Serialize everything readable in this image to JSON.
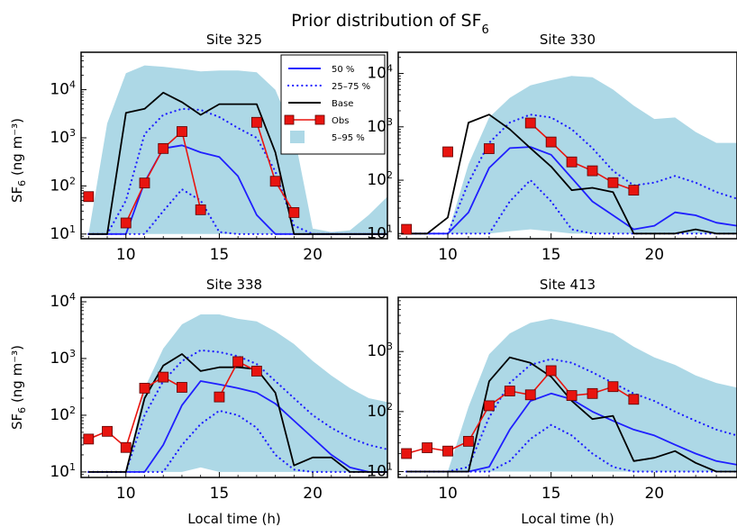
{
  "figure": {
    "title": "Prior distribution of SF",
    "title_sub": "6"
  },
  "legend": {
    "entries": [
      {
        "label": "50 %",
        "style": "solid-blue"
      },
      {
        "label": "25–75 %",
        "style": "dotted-blue"
      },
      {
        "label": "Base",
        "style": "solid-black"
      },
      {
        "label": "Obs",
        "style": "red-square"
      },
      {
        "label": "5–95 %",
        "style": "lightblue-band"
      }
    ]
  },
  "colors": {
    "median": "#1f1fff",
    "quartile": "#1f1fff",
    "base": "#000000",
    "obs_fill": "#e8140f",
    "obs_line": "#e8140f",
    "band": "#add8e6"
  },
  "chart_data": [
    {
      "type": "line",
      "title": "Site 325",
      "xlabel": "",
      "ylabel": "SF6 (ng m⁻³)",
      "y_scale": "log",
      "ylim": [
        8,
        60000
      ],
      "xlim": [
        7.6,
        24
      ],
      "xticks": [
        10,
        15,
        20
      ],
      "yticks": [
        10,
        100,
        1000,
        10000
      ],
      "legend_location": "top-right",
      "band_x": [
        8,
        9,
        10,
        11,
        12,
        13,
        14,
        15,
        16,
        17,
        18,
        19,
        20,
        21,
        22,
        23,
        24
      ],
      "band_low": [
        10,
        10,
        10,
        10,
        10,
        10,
        10,
        10,
        10,
        10,
        10,
        10,
        10,
        10,
        10,
        10,
        10
      ],
      "band_high": [
        10,
        2000,
        22000,
        32000,
        30000,
        27000,
        24000,
        25000,
        25000,
        23000,
        10000,
        1200,
        13,
        11,
        12,
        25,
        60
      ],
      "x": [
        8,
        9,
        10,
        11,
        12,
        13,
        14,
        15,
        16,
        17,
        18,
        19,
        20,
        21,
        22,
        23,
        24
      ],
      "p50": [
        10,
        10,
        10,
        120,
        600,
        700,
        500,
        400,
        160,
        25,
        10,
        10,
        10,
        10,
        10,
        10,
        10
      ],
      "p25": [
        10,
        10,
        10,
        10,
        30,
        85,
        50,
        11,
        10,
        10,
        10,
        10,
        10,
        10,
        10,
        10,
        10
      ],
      "p75": [
        10,
        10,
        50,
        1200,
        3000,
        4000,
        3800,
        2700,
        1600,
        1000,
        200,
        15,
        10,
        10,
        10,
        10,
        10
      ],
      "base": [
        10,
        10,
        3300,
        4000,
        8700,
        5500,
        3000,
        5000,
        5000,
        5000,
        500,
        10,
        10,
        10,
        10,
        10,
        10
      ],
      "obs_x": [
        8,
        10,
        11,
        12,
        13,
        14,
        17,
        18,
        19
      ],
      "obs_y": [
        60,
        17,
        115,
        600,
        1350,
        32,
        2100,
        125,
        28
      ],
      "obs_connected": [
        [
          10,
          11,
          12,
          13,
          14
        ],
        [
          17,
          18,
          19
        ]
      ]
    },
    {
      "type": "line",
      "title": "Site 330",
      "xlabel": "",
      "ylabel": "",
      "y_scale": "log",
      "ylim": [
        8,
        25000
      ],
      "xlim": [
        7.6,
        24
      ],
      "xticks": [
        10,
        15,
        20
      ],
      "yticks": [
        10,
        100,
        1000,
        10000
      ],
      "legend_location": "",
      "band_x": [
        8,
        9,
        10,
        11,
        12,
        13,
        14,
        15,
        16,
        17,
        18,
        19,
        20,
        21,
        22,
        23,
        24
      ],
      "band_low": [
        10,
        10,
        10,
        10,
        10,
        11,
        12,
        11,
        10,
        10,
        10,
        10,
        10,
        10,
        10,
        10,
        10
      ],
      "band_high": [
        10,
        10,
        10,
        200,
        1500,
        3500,
        6000,
        7500,
        9000,
        8500,
        5000,
        2500,
        1400,
        1500,
        800,
        500,
        500
      ],
      "x": [
        8,
        9,
        10,
        11,
        12,
        13,
        14,
        15,
        16,
        17,
        18,
        19,
        20,
        21,
        22,
        23,
        24
      ],
      "p50": [
        10,
        10,
        10,
        25,
        170,
        400,
        420,
        300,
        110,
        40,
        22,
        12,
        14,
        25,
        22,
        16,
        14
      ],
      "p25": [
        10,
        10,
        10,
        10,
        10,
        40,
        100,
        40,
        12,
        10,
        10,
        10,
        10,
        10,
        10,
        10,
        10
      ],
      "p75": [
        10,
        10,
        10,
        90,
        500,
        1200,
        1700,
        1500,
        900,
        400,
        150,
        80,
        90,
        120,
        90,
        60,
        45
      ],
      "base": [
        10,
        10,
        20,
        1200,
        1700,
        900,
        400,
        180,
        65,
        72,
        60,
        10,
        10,
        10,
        12,
        10,
        10
      ],
      "obs_x": [
        8,
        10,
        12,
        14,
        15,
        16,
        17,
        18,
        19
      ],
      "obs_y": [
        12,
        340,
        390,
        1180,
        520,
        220,
        150,
        90,
        65
      ],
      "obs_connected": [
        [
          14,
          15,
          16,
          17,
          18,
          19
        ]
      ]
    },
    {
      "type": "line",
      "title": "Site 338",
      "xlabel": "Local time (h)",
      "ylabel": "SF6 (ng m⁻³)",
      "y_scale": "log",
      "ylim": [
        8,
        12000
      ],
      "xlim": [
        7.6,
        24
      ],
      "xticks": [
        10,
        15,
        20
      ],
      "yticks": [
        10,
        100,
        1000,
        10000
      ],
      "legend_location": "",
      "band_x": [
        8,
        9,
        10,
        11,
        12,
        13,
        14,
        15,
        16,
        17,
        18,
        19,
        20,
        21,
        22,
        23,
        24
      ],
      "band_low": [
        10,
        10,
        10,
        10,
        10,
        10,
        12,
        10,
        10,
        10,
        10,
        10,
        10,
        10,
        10,
        10,
        10
      ],
      "band_high": [
        10,
        10,
        10,
        300,
        1500,
        4000,
        6000,
        6000,
        5000,
        4500,
        3000,
        1800,
        900,
        500,
        300,
        200,
        170
      ],
      "x": [
        8,
        9,
        10,
        11,
        12,
        13,
        14,
        15,
        16,
        17,
        18,
        19,
        20,
        21,
        22,
        23,
        24
      ],
      "p50": [
        10,
        10,
        10,
        10,
        30,
        150,
        400,
        350,
        300,
        250,
        160,
        80,
        40,
        20,
        12,
        10,
        10
      ],
      "p25": [
        10,
        10,
        10,
        10,
        10,
        30,
        70,
        120,
        100,
        60,
        20,
        11,
        10,
        10,
        10,
        10,
        10
      ],
      "p75": [
        10,
        10,
        10,
        100,
        400,
        900,
        1400,
        1300,
        1100,
        800,
        400,
        200,
        100,
        60,
        40,
        30,
        25
      ],
      "base": [
        10,
        10,
        10,
        200,
        750,
        1200,
        600,
        700,
        700,
        650,
        250,
        13,
        18,
        18,
        10,
        10,
        10
      ],
      "obs_x": [
        8,
        9,
        10,
        11,
        12,
        13,
        15,
        16,
        17
      ],
      "obs_y": [
        38,
        52,
        27,
        300,
        470,
        310,
        210,
        880,
        600
      ],
      "obs_connected": [
        [
          8,
          9,
          10,
          11,
          12,
          13
        ],
        [
          15,
          16,
          17
        ]
      ]
    },
    {
      "type": "line",
      "title": "Site 413",
      "xlabel": "Local time (h)",
      "ylabel": "",
      "y_scale": "log",
      "ylim": [
        8,
        8000
      ],
      "xlim": [
        7.6,
        24
      ],
      "xticks": [
        10,
        15,
        20
      ],
      "yticks": [
        10,
        100,
        1000
      ],
      "legend_location": "",
      "band_x": [
        8,
        9,
        10,
        11,
        12,
        13,
        14,
        15,
        16,
        17,
        18,
        19,
        20,
        21,
        22,
        23,
        24
      ],
      "band_low": [
        10,
        10,
        10,
        10,
        10,
        10,
        10,
        10,
        10,
        10,
        10,
        10,
        10,
        10,
        10,
        10,
        10
      ],
      "band_high": [
        10,
        10,
        10,
        120,
        900,
        2000,
        3000,
        3500,
        3000,
        2500,
        2000,
        1200,
        800,
        600,
        400,
        300,
        250
      ],
      "x": [
        8,
        9,
        10,
        11,
        12,
        13,
        14,
        15,
        16,
        17,
        18,
        19,
        20,
        21,
        22,
        23,
        24
      ],
      "p50": [
        10,
        10,
        10,
        10,
        12,
        50,
        150,
        200,
        160,
        100,
        70,
        50,
        40,
        28,
        20,
        15,
        13
      ],
      "p25": [
        10,
        10,
        10,
        10,
        10,
        15,
        35,
        60,
        40,
        20,
        12,
        10,
        10,
        10,
        10,
        10,
        10
      ],
      "p75": [
        10,
        10,
        10,
        12,
        80,
        300,
        600,
        750,
        650,
        450,
        300,
        200,
        150,
        100,
        70,
        50,
        40
      ],
      "base": [
        10,
        10,
        10,
        10,
        320,
        800,
        650,
        380,
        150,
        75,
        85,
        15,
        17,
        22,
        14,
        10,
        10
      ],
      "obs_x": [
        8,
        9,
        10,
        11,
        12,
        13,
        14,
        15,
        16,
        17,
        18,
        19
      ],
      "obs_y": [
        20,
        25,
        22,
        32,
        125,
        220,
        190,
        480,
        185,
        200,
        260,
        160
      ],
      "obs_connected": [
        [
          8,
          9,
          10,
          11,
          12,
          13,
          14,
          15,
          16,
          17,
          18,
          19
        ]
      ]
    }
  ]
}
